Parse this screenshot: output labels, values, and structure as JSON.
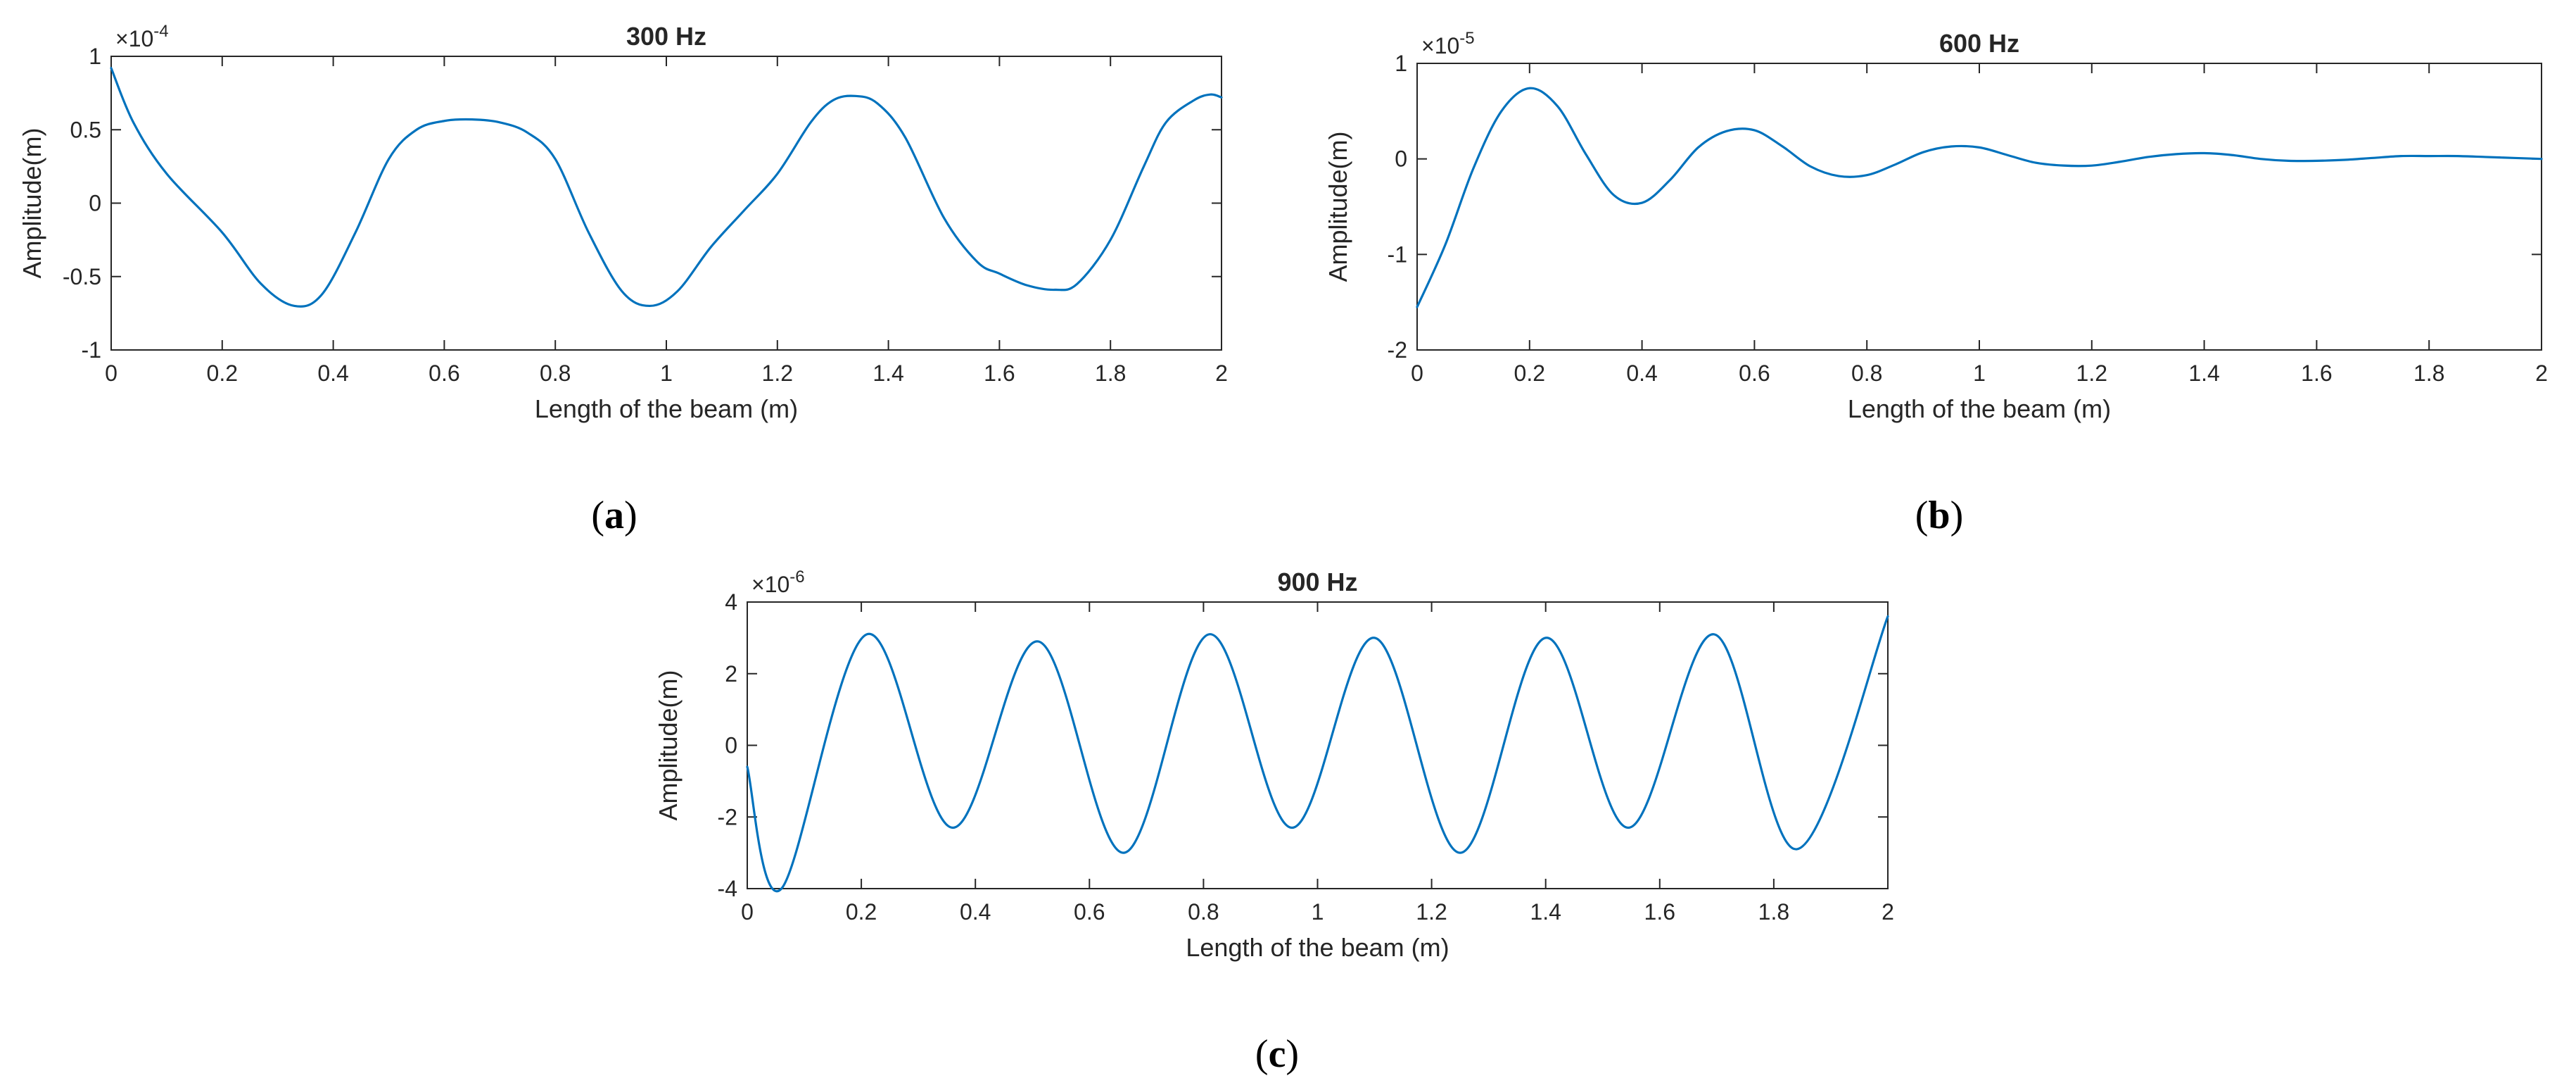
{
  "figure": {
    "colors": {
      "line": "#0072BD",
      "axis": "#262626",
      "background": "#ffffff"
    }
  },
  "chart_data": [
    {
      "type": "line",
      "panel_label": "a",
      "title": "300 Hz",
      "xlabel": "Length of the beam (m)",
      "ylabel": "Amplitude(m)",
      "exponent_base": "×10",
      "exponent_power": "-4",
      "xlim": [
        0,
        2
      ],
      "ylim": [
        -1,
        1
      ],
      "xticks": [
        0,
        0.2,
        0.4,
        0.6,
        0.8,
        1,
        1.2,
        1.4,
        1.6,
        1.8,
        2
      ],
      "xtick_labels": [
        "0",
        "0.2",
        "0.4",
        "0.6",
        "0.8",
        "1",
        "1.2",
        "1.4",
        "1.6",
        "1.8",
        "2"
      ],
      "yticks": [
        -1,
        -0.5,
        0,
        0.5,
        1
      ],
      "ytick_labels": [
        "-1",
        "-0.5",
        "0",
        "0.5",
        "1"
      ],
      "series": [
        {
          "name": "amplitude",
          "x": [
            0,
            0.04,
            0.1,
            0.2,
            0.27,
            0.33,
            0.38,
            0.44,
            0.5,
            0.55,
            0.6,
            0.65,
            0.7,
            0.75,
            0.8,
            0.86,
            0.92,
            0.97,
            1.02,
            1.08,
            1.14,
            1.2,
            1.26,
            1.3,
            1.34,
            1.38,
            1.43,
            1.5,
            1.56,
            1.6,
            1.65,
            1.7,
            1.74,
            1.8,
            1.86,
            1.9,
            1.95,
            1.98,
            2
          ],
          "y": [
            0.92,
            0.55,
            0.2,
            -0.2,
            -0.55,
            -0.7,
            -0.62,
            -0.2,
            0.3,
            0.5,
            0.56,
            0.57,
            0.55,
            0.48,
            0.3,
            -0.2,
            -0.6,
            -0.7,
            -0.6,
            -0.3,
            -0.05,
            0.2,
            0.55,
            0.7,
            0.73,
            0.68,
            0.45,
            -0.1,
            -0.4,
            -0.48,
            -0.56,
            -0.59,
            -0.55,
            -0.25,
            0.25,
            0.55,
            0.7,
            0.74,
            0.72
          ]
        }
      ]
    },
    {
      "type": "line",
      "panel_label": "b",
      "title": "600 Hz",
      "xlabel": "Length of the beam (m)",
      "ylabel": "Amplitude(m)",
      "exponent_base": "×10",
      "exponent_power": "-5",
      "xlim": [
        0,
        2
      ],
      "ylim": [
        -2,
        1
      ],
      "xticks": [
        0,
        0.2,
        0.4,
        0.6,
        0.8,
        1,
        1.2,
        1.4,
        1.6,
        1.8,
        2
      ],
      "xtick_labels": [
        "0",
        "0.2",
        "0.4",
        "0.6",
        "0.8",
        "1",
        "1.2",
        "1.4",
        "1.6",
        "1.8",
        "2"
      ],
      "yticks": [
        -2,
        -1,
        0,
        1
      ],
      "ytick_labels": [
        "-2",
        "-1",
        "0",
        "1"
      ],
      "series": [
        {
          "name": "amplitude",
          "x": [
            0,
            0.05,
            0.1,
            0.15,
            0.2,
            0.25,
            0.3,
            0.35,
            0.4,
            0.45,
            0.5,
            0.55,
            0.6,
            0.65,
            0.7,
            0.75,
            0.8,
            0.85,
            0.9,
            0.95,
            1.0,
            1.05,
            1.1,
            1.15,
            1.2,
            1.25,
            1.3,
            1.35,
            1.4,
            1.45,
            1.5,
            1.55,
            1.6,
            1.65,
            1.7,
            1.75,
            1.8,
            1.85,
            1.9,
            1.95,
            2.0
          ],
          "y": [
            -1.55,
            -0.9,
            -0.1,
            0.5,
            0.74,
            0.55,
            0.05,
            -0.38,
            -0.46,
            -0.22,
            0.12,
            0.29,
            0.3,
            0.13,
            -0.08,
            -0.18,
            -0.17,
            -0.06,
            0.07,
            0.13,
            0.12,
            0.04,
            -0.04,
            -0.07,
            -0.07,
            -0.03,
            0.02,
            0.05,
            0.06,
            0.04,
            0.0,
            -0.02,
            -0.02,
            -0.01,
            0.01,
            0.03,
            0.03,
            0.03,
            0.02,
            0.01,
            0.0
          ]
        }
      ]
    },
    {
      "type": "line",
      "panel_label": "c",
      "title": "900 Hz",
      "xlabel": "Length of the beam (m)",
      "ylabel": "Amplitude(m)",
      "exponent_base": "×10",
      "exponent_power": "-6",
      "xlim": [
        0,
        2
      ],
      "ylim": [
        -4,
        4
      ],
      "xticks": [
        0,
        0.2,
        0.4,
        0.6,
        0.8,
        1,
        1.2,
        1.4,
        1.6,
        1.8,
        2
      ],
      "xtick_labels": [
        "0",
        "0.2",
        "0.4",
        "0.6",
        "0.8",
        "1",
        "1.2",
        "1.4",
        "1.6",
        "1.8",
        "2"
      ],
      "yticks": [
        -4,
        -2,
        0,
        2,
        4
      ],
      "ytick_labels": [
        "-4",
        "-2",
        "0",
        "2",
        "4"
      ],
      "series": [
        {
          "name": "amplitude",
          "x": [
            0,
            0.06,
            0.21,
            0.36,
            0.51,
            0.66,
            0.81,
            0.955,
            1.1,
            1.25,
            1.4,
            1.545,
            1.695,
            1.84,
            2
          ],
          "y": [
            -0.6,
            -4.0,
            3.1,
            -2.3,
            2.9,
            -3.0,
            3.1,
            -2.3,
            3.0,
            -3.0,
            3.0,
            -2.3,
            3.1,
            -2.9,
            3.6
          ]
        }
      ]
    }
  ]
}
